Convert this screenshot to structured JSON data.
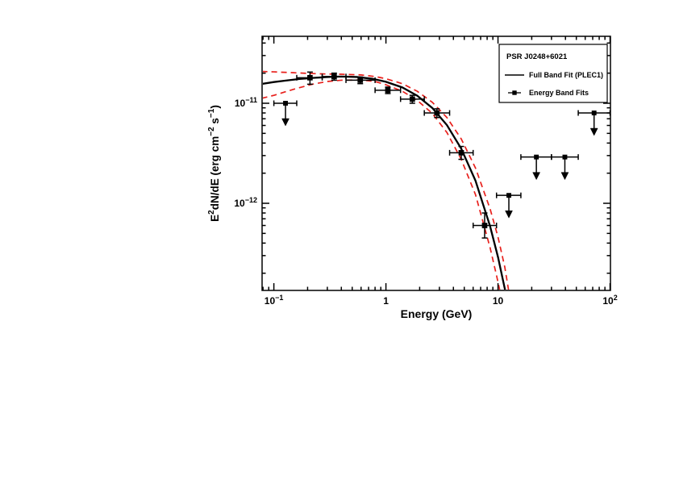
{
  "page": {
    "background": "#ffffff"
  },
  "chart_data": {
    "type": "line",
    "title": "",
    "xlabel": "Energy (GeV)",
    "ylabel_segments": [
      {
        "t": "E"
      },
      {
        "t": "2",
        "sup": true
      },
      {
        "t": "dN/dE (erg cm"
      },
      {
        "t": "−2",
        "sup": true
      },
      {
        "t": " s"
      },
      {
        "t": "−1",
        "sup": true
      },
      {
        "t": ")"
      }
    ],
    "x_scale": "log",
    "y_scale": "log",
    "xlim": [
      0.0785,
      100.8
    ],
    "ylim": [
      1.346e-13,
      4.67e-11
    ],
    "grid": false,
    "x_major_ticks": [
      {
        "value": 0.1,
        "base": "10",
        "exp": "−1"
      },
      {
        "value": 1,
        "base": "1",
        "exp": ""
      },
      {
        "value": 10,
        "base": "10",
        "exp": ""
      },
      {
        "value": 100,
        "base": "10",
        "exp": "2"
      }
    ],
    "y_major_ticks": [
      {
        "value": 1e-11,
        "base": "10",
        "exp": "−11"
      },
      {
        "value": 1e-12,
        "base": "10",
        "exp": "−12"
      }
    ],
    "colors": {
      "fit": "#000000",
      "envelope": "#e8201c",
      "data": "#000000",
      "frame": "#000000",
      "background": "#ffffff"
    },
    "fit_line": {
      "name": "Full Band Fit (PLEC1)",
      "points": [
        [
          0.078,
          1.56e-11
        ],
        [
          0.1,
          1.63e-11
        ],
        [
          0.13,
          1.69e-11
        ],
        [
          0.17,
          1.75e-11
        ],
        [
          0.22,
          1.79e-11
        ],
        [
          0.3,
          1.83e-11
        ],
        [
          0.4,
          1.85e-11
        ],
        [
          0.55,
          1.83e-11
        ],
        [
          0.75,
          1.76e-11
        ],
        [
          1.0,
          1.64e-11
        ],
        [
          1.4,
          1.44e-11
        ],
        [
          1.9,
          1.19e-11
        ],
        [
          2.6,
          8.95e-12
        ],
        [
          3.5,
          6.05e-12
        ],
        [
          4.7,
          3.52e-12
        ],
        [
          6.3,
          1.68e-12
        ],
        [
          8.5,
          5.9e-13
        ],
        [
          10.0,
          2.9e-13
        ],
        [
          11.5,
          1.4e-13
        ],
        [
          12.5,
          9e-14
        ]
      ]
    },
    "envelope_upper": {
      "name": "fit uncertainty upper (dashed)",
      "points": [
        [
          0.078,
          2.08e-11
        ],
        [
          0.1,
          2.06e-11
        ],
        [
          0.15,
          2.02e-11
        ],
        [
          0.22,
          1.98e-11
        ],
        [
          0.3,
          1.96e-11
        ],
        [
          0.4,
          1.95e-11
        ],
        [
          0.6,
          1.92e-11
        ],
        [
          0.8,
          1.85e-11
        ],
        [
          1.0,
          1.76e-11
        ],
        [
          1.4,
          1.57e-11
        ],
        [
          1.9,
          1.32e-11
        ],
        [
          2.6,
          1.02e-11
        ],
        [
          3.5,
          7.2e-12
        ],
        [
          4.7,
          4.4e-12
        ],
        [
          6.3,
          2.25e-12
        ],
        [
          8.5,
          8.8e-13
        ],
        [
          10.0,
          4.6e-13
        ],
        [
          11.5,
          2.3e-13
        ],
        [
          13.0,
          1e-13
        ]
      ]
    },
    "envelope_lower": {
      "name": "fit uncertainty lower (dashed)",
      "points": [
        [
          0.078,
          1.12e-11
        ],
        [
          0.1,
          1.2e-11
        ],
        [
          0.15,
          1.38e-11
        ],
        [
          0.22,
          1.55e-11
        ],
        [
          0.3,
          1.65e-11
        ],
        [
          0.4,
          1.7e-11
        ],
        [
          0.6,
          1.71e-11
        ],
        [
          0.8,
          1.65e-11
        ],
        [
          1.0,
          1.53e-11
        ],
        [
          1.4,
          1.32e-11
        ],
        [
          1.9,
          1.07e-11
        ],
        [
          2.6,
          7.9e-12
        ],
        [
          3.5,
          5.1e-12
        ],
        [
          4.7,
          2.75e-12
        ],
        [
          6.3,
          1.22e-12
        ],
        [
          8.5,
          3.6e-13
        ],
        [
          9.7,
          1.9e-13
        ],
        [
          10.8,
          1.1e-13
        ]
      ]
    },
    "data_points": [
      {
        "e": 0.21,
        "elo": 0.16,
        "ehi": 0.27,
        "f": 1.8e-11,
        "flo": 1.55e-11,
        "fhi": 2.05e-11
      },
      {
        "e": 0.345,
        "elo": 0.27,
        "ehi": 0.44,
        "f": 1.85e-11,
        "flo": 1.7e-11,
        "fhi": 2e-11
      },
      {
        "e": 0.59,
        "elo": 0.44,
        "ehi": 0.8,
        "f": 1.7e-11,
        "flo": 1.57e-11,
        "fhi": 1.83e-11
      },
      {
        "e": 1.04,
        "elo": 0.8,
        "ehi": 1.35,
        "f": 1.35e-11,
        "flo": 1.25e-11,
        "fhi": 1.45e-11
      },
      {
        "e": 1.72,
        "elo": 1.35,
        "ehi": 2.2,
        "f": 1.1e-11,
        "flo": 1e-11,
        "fhi": 1.2e-11
      },
      {
        "e": 2.85,
        "elo": 2.2,
        "ehi": 3.7,
        "f": 8e-12,
        "flo": 7.2e-12,
        "fhi": 8.8e-12
      },
      {
        "e": 4.7,
        "elo": 3.7,
        "ehi": 6.0,
        "f": 3.2e-12,
        "flo": 2.75e-12,
        "fhi": 3.7e-12
      },
      {
        "e": 7.6,
        "elo": 6.0,
        "ehi": 9.7,
        "f": 6e-13,
        "flo": 4.5e-13,
        "fhi": 8e-13
      }
    ],
    "upper_limits": [
      {
        "e": 0.127,
        "elo": 0.1,
        "ehi": 0.16,
        "f": 1e-11
      },
      {
        "e": 12.5,
        "elo": 9.7,
        "ehi": 16,
        "f": 1.2e-12
      },
      {
        "e": 22,
        "elo": 16,
        "ehi": 30,
        "f": 2.9e-12
      },
      {
        "e": 39.5,
        "elo": 30,
        "ehi": 52,
        "f": 2.9e-12
      },
      {
        "e": 72,
        "elo": 52,
        "ehi": 100,
        "f": 8e-12
      }
    ],
    "legend": {
      "position": "top-right",
      "title": "PSR J0248+6021",
      "entries": [
        {
          "label": "Full Band Fit (PLEC1)",
          "sample": "line"
        },
        {
          "label": "Energy Band Fits",
          "sample": "marker"
        }
      ]
    }
  }
}
